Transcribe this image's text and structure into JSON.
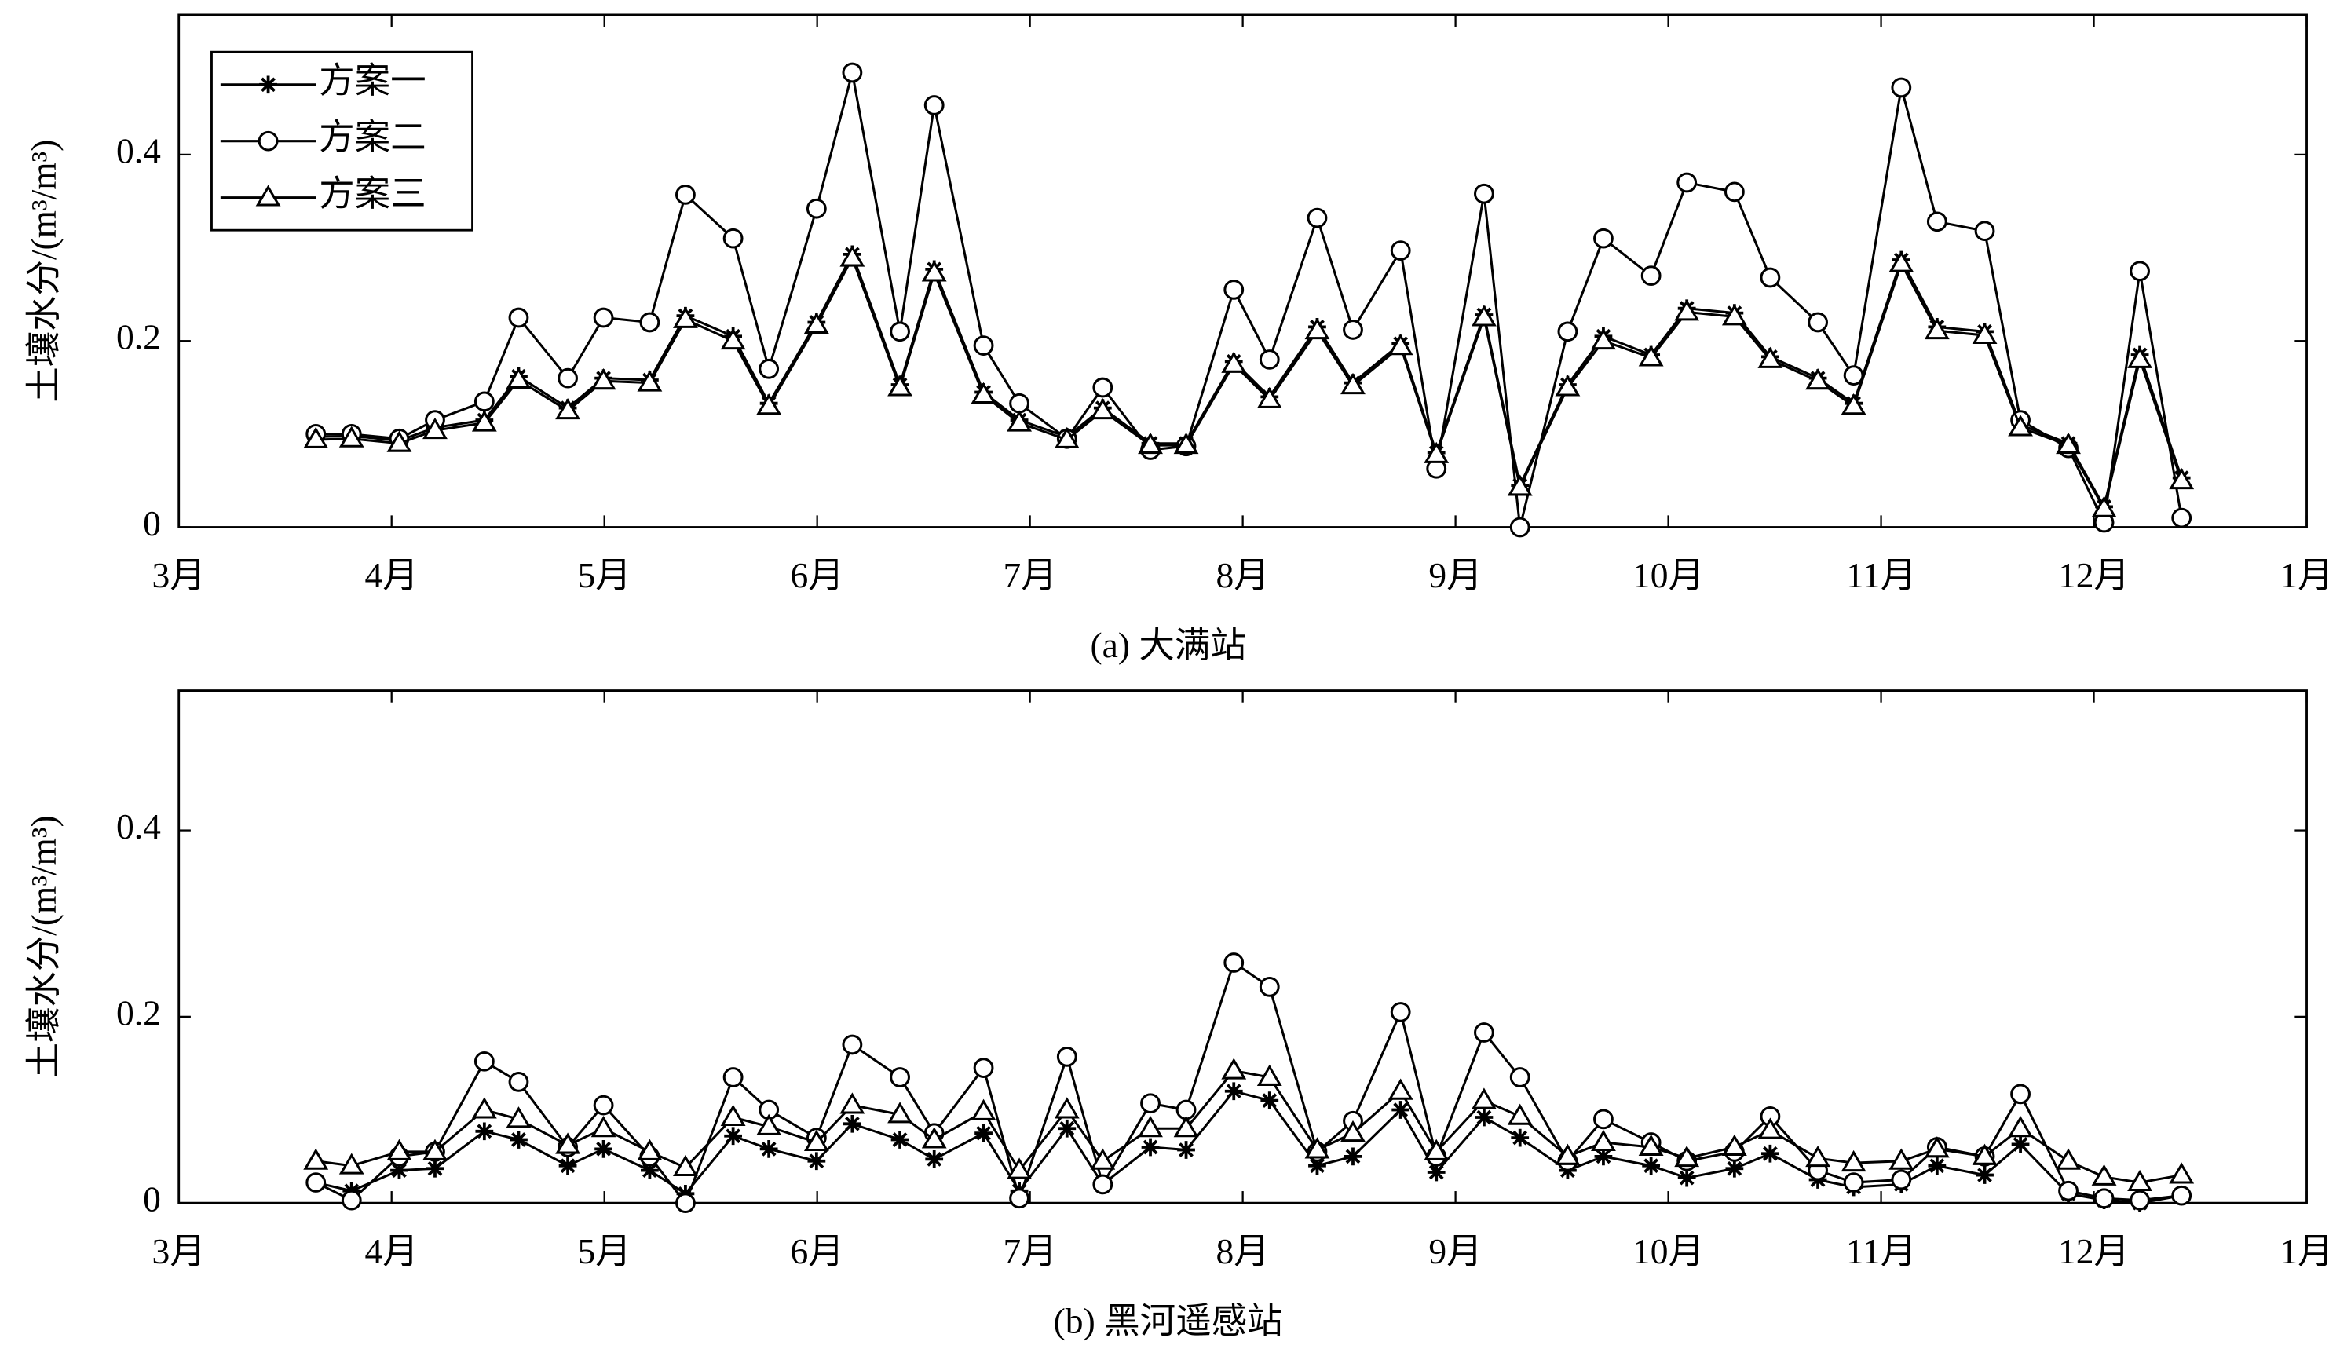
{
  "chart_data": [
    {
      "type": "line",
      "caption": "(a) 大满站",
      "ylabel": "土壤水分/(m³/m³)",
      "xlim": [
        3,
        13
      ],
      "xticks": [
        {
          "value": 3,
          "label": "3月"
        },
        {
          "value": 4,
          "label": "4月"
        },
        {
          "value": 5,
          "label": "5月"
        },
        {
          "value": 6,
          "label": "6月"
        },
        {
          "value": 7,
          "label": "7月"
        },
        {
          "value": 8,
          "label": "8月"
        },
        {
          "value": 9,
          "label": "9月"
        },
        {
          "value": 10,
          "label": "10月"
        },
        {
          "value": 11,
          "label": "11月"
        },
        {
          "value": 12,
          "label": "12月"
        },
        {
          "value": 13,
          "label": "1月"
        }
      ],
      "ylim": [
        0,
        0.55
      ],
      "yticks": [
        0,
        0.2,
        0.4
      ],
      "legend": "upper left",
      "x": [
        3.644,
        3.812,
        4.036,
        4.204,
        4.436,
        4.597,
        4.828,
        4.996,
        5.213,
        5.381,
        5.605,
        5.773,
        5.997,
        6.165,
        6.389,
        6.55,
        6.782,
        6.95,
        7.174,
        7.342,
        7.566,
        7.734,
        7.958,
        8.126,
        8.35,
        8.518,
        8.742,
        8.91,
        9.134,
        9.303,
        9.527,
        9.695,
        9.919,
        10.087,
        10.311,
        10.479,
        10.703,
        10.871,
        11.095,
        11.263,
        11.487,
        11.655,
        11.88,
        12.048,
        12.216,
        12.412
      ],
      "series": [
        {
          "name": "方案一",
          "color": "#000000",
          "marker": "*",
          "values": [
            0.097,
            0.098,
            0.093,
            0.107,
            0.115,
            0.162,
            0.128,
            0.16,
            0.158,
            0.227,
            0.205,
            0.133,
            0.22,
            0.293,
            0.153,
            0.277,
            0.145,
            0.115,
            0.097,
            0.128,
            0.09,
            0.09,
            0.178,
            0.14,
            0.215,
            0.155,
            0.197,
            0.08,
            0.228,
            0.045,
            0.153,
            0.205,
            0.185,
            0.235,
            0.23,
            0.183,
            0.16,
            0.133,
            0.287,
            0.215,
            0.21,
            0.11,
            0.09,
            0.022,
            0.185,
            0.053
          ]
        },
        {
          "name": "方案二",
          "color": "#000000",
          "marker": "o",
          "values": [
            0.1,
            0.1,
            0.095,
            0.115,
            0.135,
            0.225,
            0.16,
            0.225,
            0.22,
            0.357,
            0.31,
            0.17,
            0.342,
            0.488,
            0.21,
            0.453,
            0.195,
            0.133,
            0.095,
            0.15,
            0.083,
            0.087,
            0.255,
            0.18,
            0.332,
            0.212,
            0.297,
            0.063,
            0.358,
            0,
            0.21,
            0.31,
            0.27,
            0.37,
            0.36,
            0.268,
            0.22,
            0.163,
            0.472,
            0.328,
            0.318,
            0.115,
            0.085,
            0.005,
            0.275,
            0.01
          ]
        },
        {
          "name": "方案三",
          "color": "#000000",
          "marker": "^",
          "values": [
            0.094,
            0.095,
            0.09,
            0.104,
            0.112,
            0.158,
            0.125,
            0.157,
            0.155,
            0.223,
            0.2,
            0.13,
            0.217,
            0.289,
            0.15,
            0.273,
            0.142,
            0.112,
            0.094,
            0.125,
            0.088,
            0.088,
            0.175,
            0.137,
            0.211,
            0.152,
            0.194,
            0.078,
            0.225,
            0.043,
            0.15,
            0.2,
            0.182,
            0.231,
            0.226,
            0.18,
            0.157,
            0.13,
            0.283,
            0.211,
            0.206,
            0.107,
            0.088,
            0.02,
            0.18,
            0.05
          ]
        }
      ]
    },
    {
      "type": "line",
      "caption": "(b) 黑河遥感站",
      "ylabel": "土壤水分/(m³/m³)",
      "xlim": [
        3,
        13
      ],
      "xticks": [
        {
          "value": 3,
          "label": "3月"
        },
        {
          "value": 4,
          "label": "4月"
        },
        {
          "value": 5,
          "label": "5月"
        },
        {
          "value": 6,
          "label": "6月"
        },
        {
          "value": 7,
          "label": "7月"
        },
        {
          "value": 8,
          "label": "8月"
        },
        {
          "value": 9,
          "label": "9月"
        },
        {
          "value": 10,
          "label": "10月"
        },
        {
          "value": 11,
          "label": "11月"
        },
        {
          "value": 12,
          "label": "12月"
        },
        {
          "value": 13,
          "label": "1月"
        }
      ],
      "ylim": [
        0,
        0.55
      ],
      "yticks": [
        0,
        0.2,
        0.4
      ],
      "x": [
        3.644,
        3.812,
        4.036,
        4.204,
        4.436,
        4.597,
        4.828,
        4.996,
        5.213,
        5.381,
        5.605,
        5.773,
        5.997,
        6.165,
        6.389,
        6.55,
        6.782,
        6.95,
        7.174,
        7.342,
        7.566,
        7.734,
        7.958,
        8.126,
        8.35,
        8.518,
        8.742,
        8.91,
        9.134,
        9.303,
        9.527,
        9.695,
        9.919,
        10.087,
        10.311,
        10.479,
        10.703,
        10.871,
        11.095,
        11.263,
        11.487,
        11.655,
        11.88,
        12.048,
        12.216,
        12.412
      ],
      "series": [
        {
          "name": "方案一",
          "color": "#000000",
          "marker": "*",
          "values": [
            0.022,
            0.013,
            0.035,
            0.037,
            0.077,
            0.068,
            0.04,
            0.058,
            0.035,
            0.01,
            0.072,
            0.058,
            0.045,
            0.085,
            0.068,
            0.047,
            0.075,
            0.013,
            0.08,
            0.02,
            0.06,
            0.057,
            0.12,
            0.11,
            0.04,
            0.05,
            0.1,
            0.033,
            0.092,
            0.07,
            0.035,
            0.05,
            0.04,
            0.027,
            0.037,
            0.053,
            0.025,
            0.017,
            0.02,
            0.04,
            0.03,
            0.063,
            0.01,
            0.003,
            0,
            0.008
          ]
        },
        {
          "name": "方案二",
          "color": "#000000",
          "marker": "o",
          "values": [
            0.022,
            0.003,
            0.05,
            0.055,
            0.152,
            0.13,
            0.06,
            0.105,
            0.05,
            0,
            0.135,
            0.1,
            0.07,
            0.17,
            0.135,
            0.075,
            0.145,
            0.005,
            0.157,
            0.02,
            0.107,
            0.1,
            0.258,
            0.232,
            0.055,
            0.088,
            0.205,
            0.05,
            0.183,
            0.135,
            0.045,
            0.09,
            0.065,
            0.045,
            0.055,
            0.093,
            0.035,
            0.022,
            0.025,
            0.06,
            0.05,
            0.117,
            0.013,
            0.005,
            0.003,
            0.008
          ]
        },
        {
          "name": "方案三",
          "color": "#000000",
          "marker": "^",
          "values": [
            0.045,
            0.04,
            0.055,
            0.055,
            0.1,
            0.09,
            0.062,
            0.08,
            0.055,
            0.038,
            0.092,
            0.082,
            0.065,
            0.105,
            0.095,
            0.068,
            0.098,
            0.035,
            0.1,
            0.045,
            0.08,
            0.08,
            0.142,
            0.135,
            0.057,
            0.075,
            0.12,
            0.055,
            0.11,
            0.093,
            0.05,
            0.065,
            0.06,
            0.048,
            0.06,
            0.078,
            0.048,
            0.043,
            0.045,
            0.058,
            0.05,
            0.08,
            0.045,
            0.028,
            0.022,
            0.03
          ]
        }
      ]
    }
  ]
}
